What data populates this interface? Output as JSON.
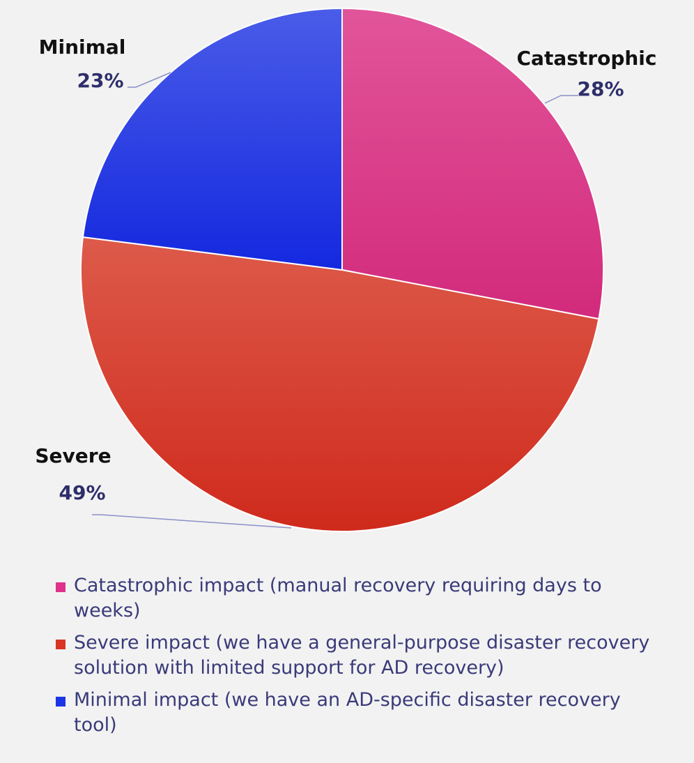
{
  "chart_data": {
    "type": "pie",
    "slices": [
      {
        "label": "Catastrophic",
        "value": 28,
        "value_label": "28%",
        "color": "#e0318a",
        "legend": "Catastrophic impact (manual recovery requiring days to weeks)"
      },
      {
        "label": "Severe",
        "value": 49,
        "value_label": "49%",
        "color": "#d83526",
        "legend": "Severe impact (we have a general-purpose disaster recovery solution with limited support for AD recovery)"
      },
      {
        "label": "Minimal",
        "value": 23,
        "value_label": "23%",
        "color": "#1b35e6",
        "legend": "Minimal impact (we have an AD-specific disaster recovery tool)"
      }
    ],
    "legend_position": "bottom"
  }
}
